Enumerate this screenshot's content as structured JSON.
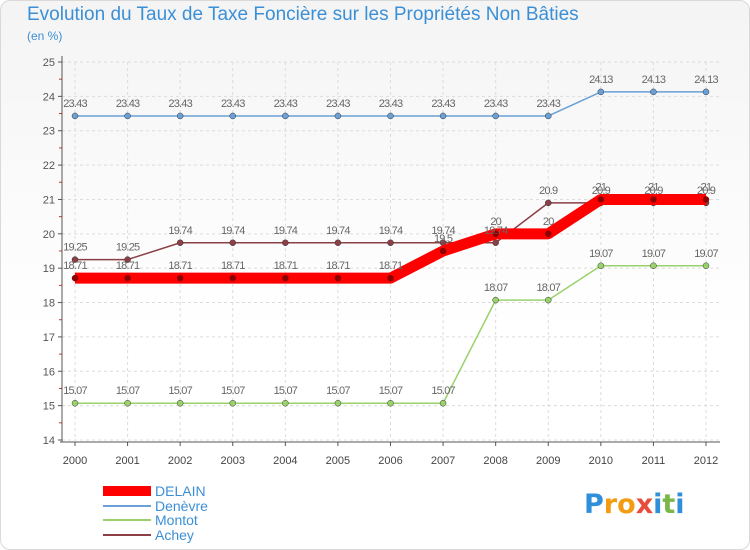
{
  "title": "Evolution du Taux de Taxe Foncière sur les Propriétés Non Bâties",
  "subtitle": "(en %)",
  "logo": {
    "letters": [
      "P",
      "r",
      "o",
      "x",
      "i",
      "t",
      "i"
    ],
    "colors": [
      "#2f8fd8",
      "#f39c12",
      "#f39c12",
      "#e74c3c",
      "#2f8fd8",
      "#7ab648",
      "#2f8fd8"
    ]
  },
  "chart_data": {
    "type": "line",
    "title": "Evolution du Taux de Taxe Foncière sur les Propriétés Non Bâties",
    "ylabel": "(en %)",
    "xlabel": "",
    "ylim": [
      14,
      25
    ],
    "yticks": [
      "14",
      "15",
      "16",
      "17",
      "18",
      "19",
      "20",
      "21",
      "22",
      "23",
      "24",
      "25"
    ],
    "categories": [
      "2000",
      "2001",
      "2002",
      "2003",
      "2004",
      "2005",
      "2006",
      "2007",
      "2008",
      "2009",
      "2010",
      "2011",
      "2012"
    ],
    "series": [
      {
        "name": "DELAIN",
        "color": "#ff0000",
        "emphasis": true,
        "values": [
          18.71,
          18.71,
          18.71,
          18.71,
          18.71,
          18.71,
          18.71,
          19.5,
          20,
          20,
          21,
          21,
          21
        ],
        "labels": [
          "18.71",
          "18.71",
          "18.71",
          "18.71",
          "18.71",
          "18.71",
          "18.71",
          "19.5",
          "20",
          "20",
          "21",
          "21",
          "21"
        ]
      },
      {
        "name": "Denèvre",
        "color": "#6aa0d6",
        "emphasis": false,
        "values": [
          23.43,
          23.43,
          23.43,
          23.43,
          23.43,
          23.43,
          23.43,
          23.43,
          23.43,
          23.43,
          24.13,
          24.13,
          24.13
        ],
        "labels": [
          "23.43",
          "23.43",
          "23.43",
          "23.43",
          "23.43",
          "23.43",
          "23.43",
          "23.43",
          "23.43",
          "23.43",
          "24.13",
          "24.13",
          "24.13"
        ]
      },
      {
        "name": "Montot",
        "color": "#99d26b",
        "emphasis": false,
        "values": [
          15.07,
          15.07,
          15.07,
          15.07,
          15.07,
          15.07,
          15.07,
          15.07,
          18.07,
          18.07,
          19.07,
          19.07,
          19.07
        ],
        "labels": [
          "15.07",
          "15.07",
          "15.07",
          "15.07",
          "15.07",
          "15.07",
          "15.07",
          "15.07",
          "18.07",
          "18.07",
          "19.07",
          "19.07",
          "19.07"
        ]
      },
      {
        "name": "Achey",
        "color": "#8b3f46",
        "emphasis": false,
        "values": [
          19.25,
          19.25,
          19.74,
          19.74,
          19.74,
          19.74,
          19.74,
          19.74,
          19.74,
          20.9,
          20.9,
          20.9,
          20.9
        ],
        "labels": [
          "19.25",
          "19.25",
          "19.74",
          "19.74",
          "19.74",
          "19.74",
          "19.74",
          "19.74",
          "19.74",
          "20.9",
          "20.9",
          "20.9",
          "20.9"
        ]
      }
    ],
    "legend_position": "bottom-left",
    "grid": true
  }
}
